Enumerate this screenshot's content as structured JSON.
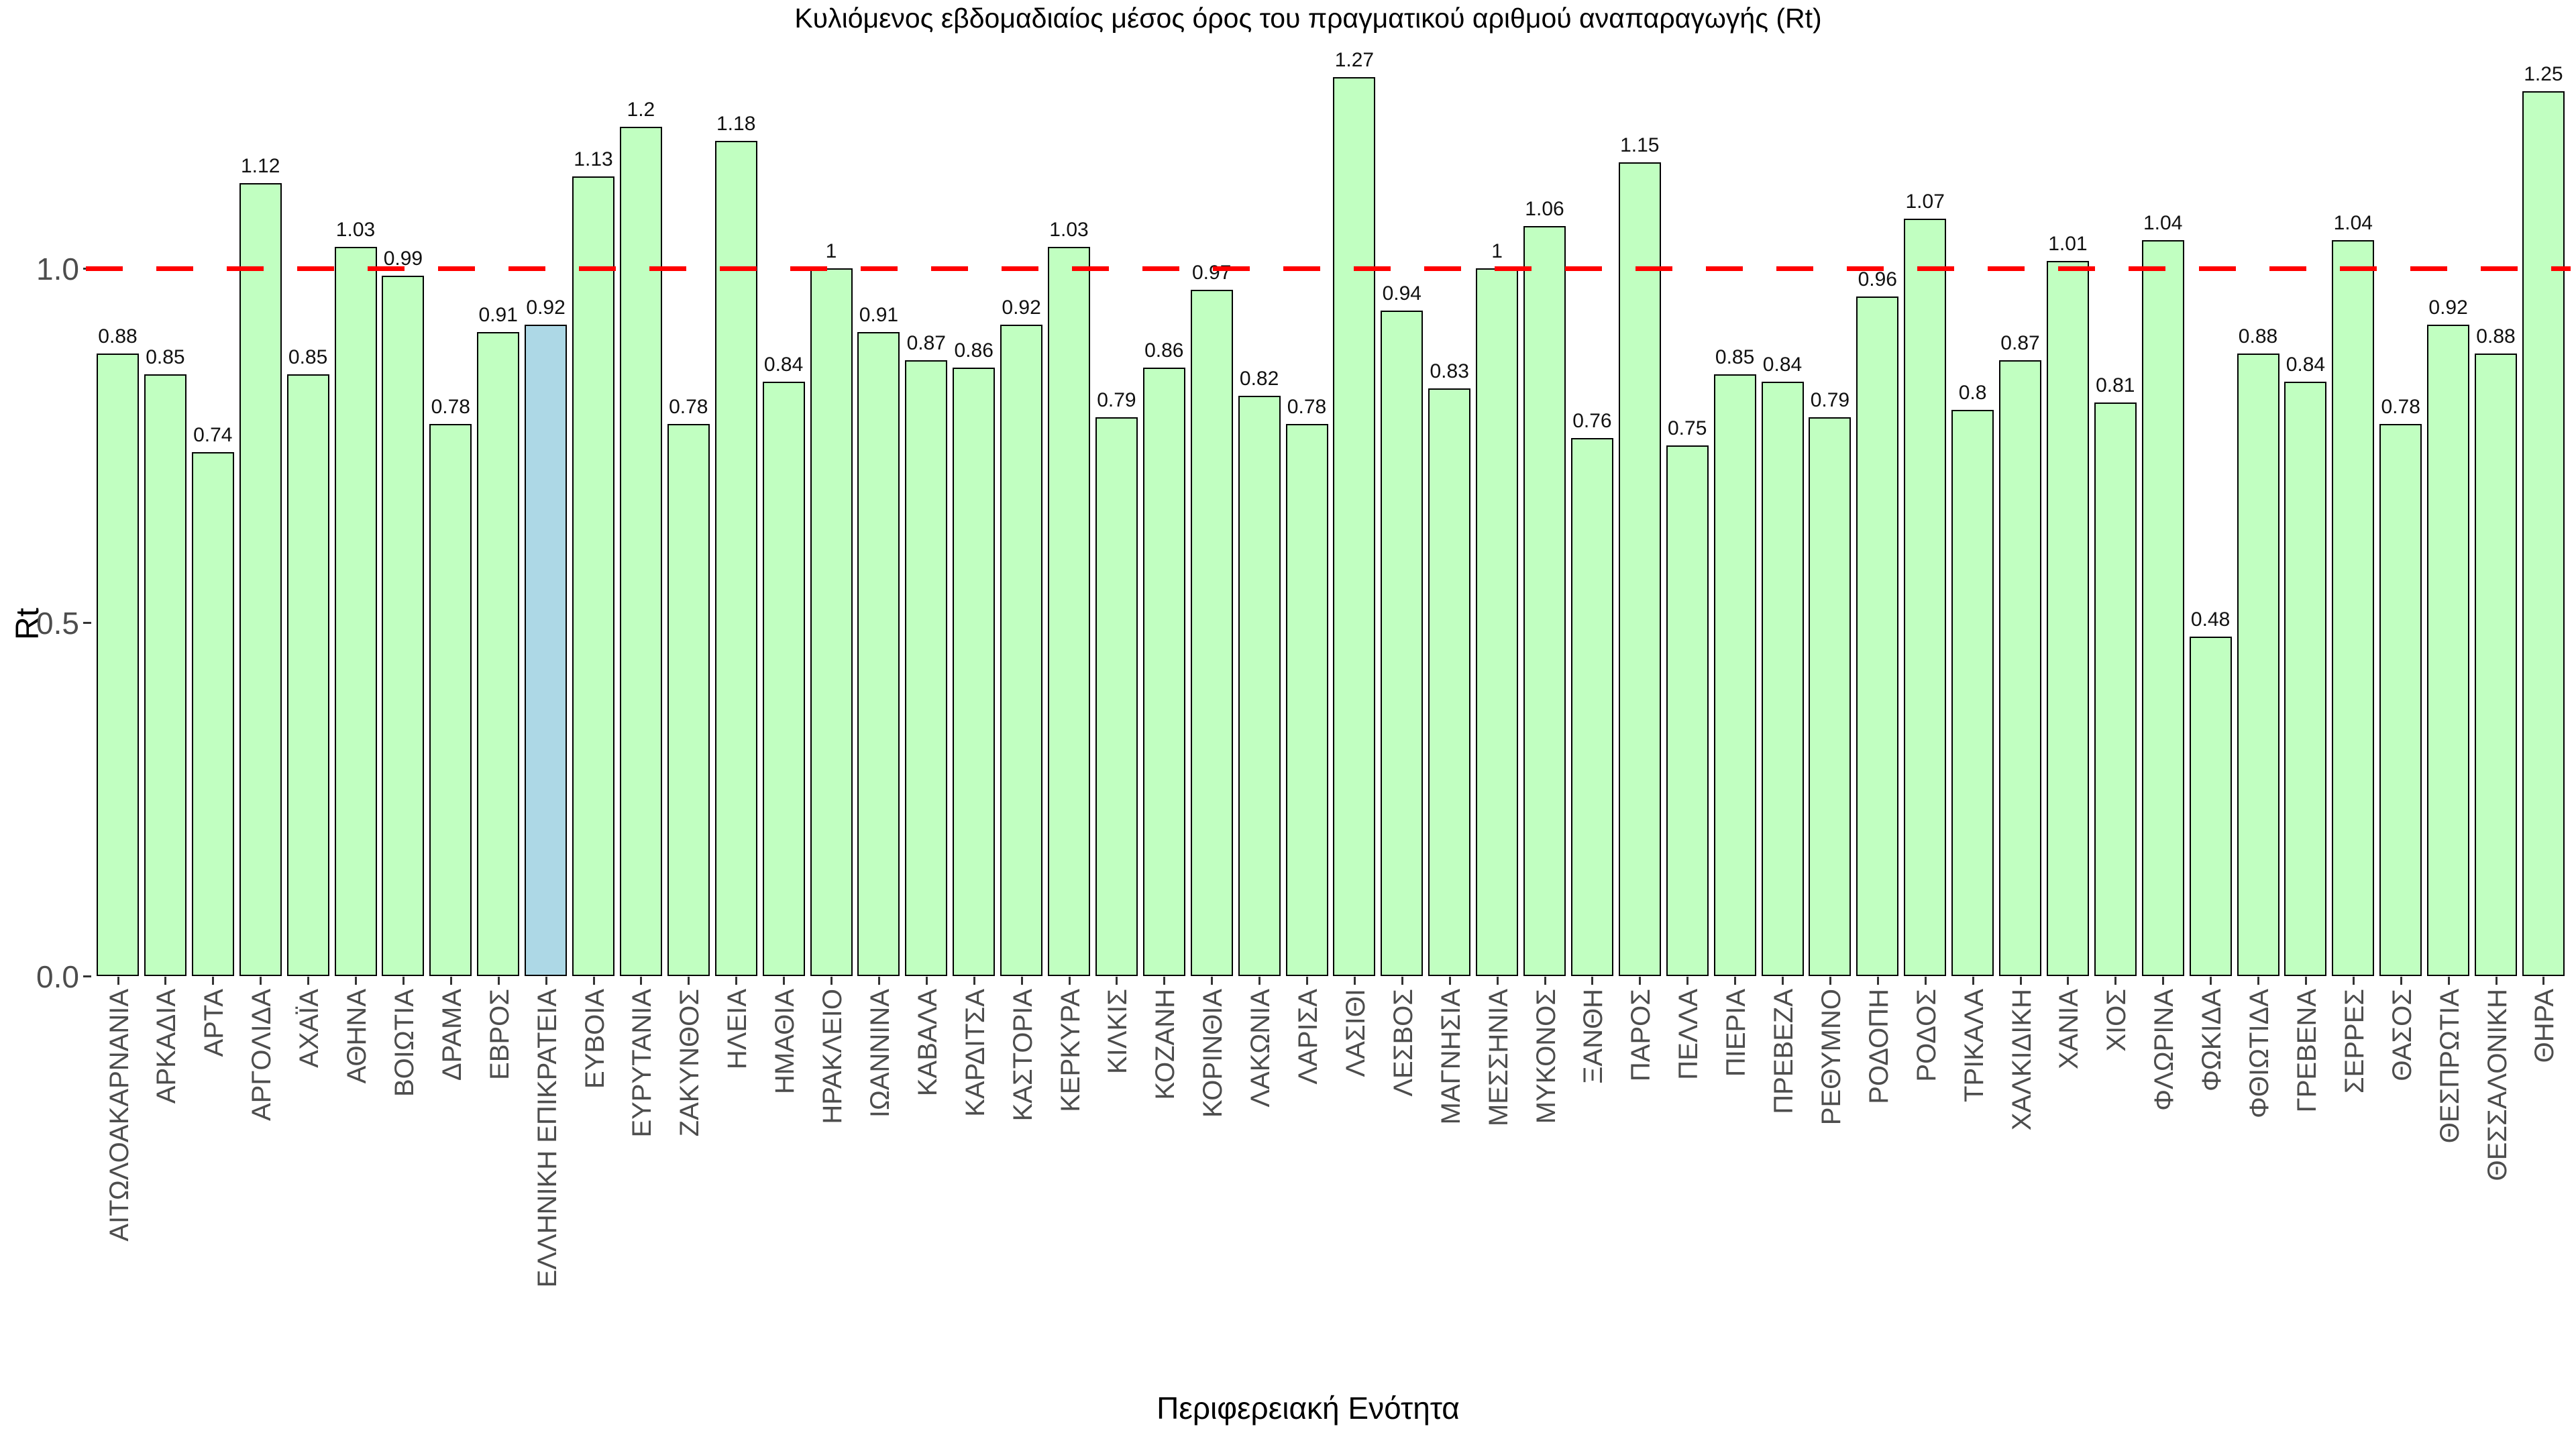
{
  "title": "Κυλιόμενος εβδομαδιαίος μέσος όρος του πραγματικού αριθμού αναπαραγωγής (Rt)",
  "axes": {
    "x_label": "Περιφερειακή Ενότητα",
    "y_label": "Rt",
    "y_tick_labels": [
      "0.0",
      "0.5",
      "1.0"
    ],
    "y_tick_values": [
      0,
      0.5,
      1
    ]
  },
  "reference_line": {
    "value": 1.0,
    "color": "#FF0000",
    "style": "dashed"
  },
  "colors": {
    "bar_fill": "#C1FFC1",
    "highlight_fill": "#ADD8E6",
    "bar_stroke": "#000000",
    "tick_label": "#4D4D4D",
    "value_label": "#111111",
    "background": "#FFFFFF"
  },
  "highlight_category": "ΕΛΛΗΝΙΚΗ ΕΠΙΚΡΑΤΕΙΑ",
  "chart_data": {
    "type": "bar",
    "title": "Κυλιόμενος εβδομαδιαίος μέσος όρος του πραγματικού αριθμού αναπαραγωγής (Rt)",
    "xlabel": "Περιφερειακή Ενότητα",
    "ylabel": "Rt",
    "ylim": [
      0,
      1.32
    ],
    "grid": false,
    "legend": "none",
    "categories": [
      "ΑΙΤΩΛΟΑΚΑΡΝΑΝΙΑ",
      "ΑΡΚΑΔΙΑ",
      "ΑΡΤΑ",
      "ΑΡΓΟΛΙΔΑ",
      "ΑΧΑΪΑ",
      "ΑΘΗΝΑ",
      "ΒΟΙΩΤΙΑ",
      "ΔΡΑΜΑ",
      "ΕΒΡΟΣ",
      "ΕΛΛΗΝΙΚΗ ΕΠΙΚΡΑΤΕΙΑ",
      "ΕΥΒΟΙΑ",
      "ΕΥΡΥΤΑΝΙΑ",
      "ΖΑΚΥΝΘΟΣ",
      "ΗΛΕΙΑ",
      "ΗΜΑΘΙΑ",
      "ΗΡΑΚΛΕΙΟ",
      "ΙΩΑΝΝΙΝΑ",
      "ΚΑΒΑΛΑ",
      "ΚΑΡΔΙΤΣΑ",
      "ΚΑΣΤΟΡΙΑ",
      "ΚΕΡΚΥΡΑ",
      "ΚΙΛΚΙΣ",
      "ΚΟΖΑΝΗ",
      "ΚΟΡΙΝΘΙΑ",
      "ΛΑΚΩΝΙΑ",
      "ΛΑΡΙΣΑ",
      "ΛΑΣΙΘΙ",
      "ΛΕΣΒΟΣ",
      "ΜΑΓΝΗΣΙΑ",
      "ΜΕΣΣΗΝΙΑ",
      "ΜΥΚΟΝΟΣ",
      "ΞΑΝΘΗ",
      "ΠΑΡΟΣ",
      "ΠΕΛΛΑ",
      "ΠΙΕΡΙΑ",
      "ΠΡΕΒΕΖΑ",
      "ΡΕΘΥΜΝΟ",
      "ΡΟΔΟΠΗ",
      "ΡΟΔΟΣ",
      "ΤΡΙΚΑΛΑ",
      "ΧΑΛΚΙΔΙΚΗ",
      "ΧΑΝΙΑ",
      "ΧΙΟΣ",
      "ΦΛΩΡΙΝΑ",
      "ΦΩΚΙΔΑ",
      "ΦΘΙΩΤΙΔΑ",
      "ΓΡΕΒΕΝΑ",
      "ΣΕΡΡΕΣ",
      "ΘΑΣΟΣ",
      "ΘΕΣΠΡΩΤΙΑ",
      "ΘΕΣΣΑΛΟΝΙΚΗ",
      "ΘΗΡΑ"
    ],
    "values": [
      0.88,
      0.85,
      0.74,
      1.12,
      0.85,
      1.03,
      0.99,
      0.78,
      0.91,
      0.92,
      1.13,
      1.2,
      0.78,
      1.18,
      0.84,
      1,
      0.91,
      0.87,
      0.86,
      0.92,
      1.03,
      0.79,
      0.86,
      0.97,
      0.82,
      0.78,
      1.27,
      0.94,
      0.83,
      1,
      1.06,
      0.76,
      1.15,
      0.75,
      0.85,
      0.84,
      0.79,
      0.96,
      1.07,
      0.8,
      0.87,
      1.01,
      0.81,
      1.04,
      0.48,
      0.88,
      0.84,
      1.04,
      0.78,
      0.92,
      0.88,
      1.25
    ],
    "value_labels": [
      "0.88",
      "0.85",
      "0.74",
      "1.12",
      "0.85",
      "1.03",
      "0.99",
      "0.78",
      "0.91",
      "0.92",
      "1.13",
      "1.2",
      "0.78",
      "1.18",
      "0.84",
      "1",
      "0.91",
      "0.87",
      "0.86",
      "0.92",
      "1.03",
      "0.79",
      "0.86",
      "0.97",
      "0.82",
      "0.78",
      "1.27",
      "0.94",
      "0.83",
      "1",
      "1.06",
      "0.76",
      "1.15",
      "0.75",
      "0.85",
      "0.84",
      "0.79",
      "0.96",
      "1.07",
      "0.8",
      "0.87",
      "1.01",
      "0.81",
      "1.04",
      "0.48",
      "0.88",
      "0.84",
      "1.04",
      "0.78",
      "0.92",
      "0.88",
      "1.25"
    ]
  }
}
